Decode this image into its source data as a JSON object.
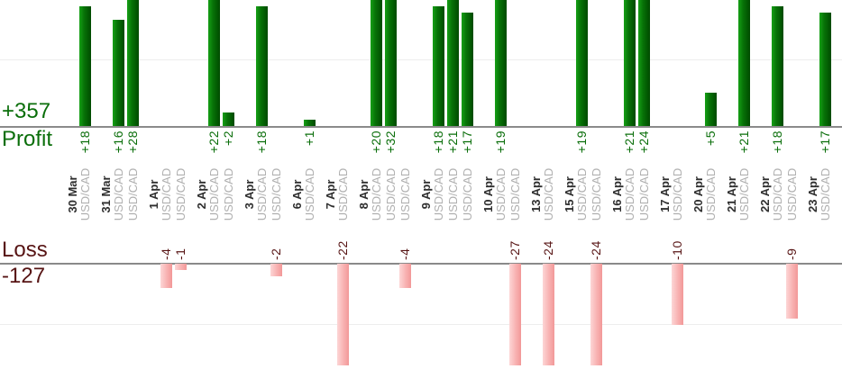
{
  "summary": {
    "profit_total": "+357",
    "profit_label": "Profit",
    "loss_label": "Loss",
    "loss_total": "-127"
  },
  "chart_data": {
    "type": "bar",
    "title": "",
    "symbol": "USD/CAD",
    "value_prefix_positive": "+",
    "profit_total": 357,
    "loss_total": -127,
    "groups": [
      {
        "date": "30 Mar",
        "trades": [
          18
        ]
      },
      {
        "date": "31 Mar",
        "trades": [
          16,
          28
        ]
      },
      {
        "date": "1 Apr",
        "trades": [
          -4,
          -1
        ]
      },
      {
        "date": "2 Apr",
        "trades": [
          22,
          2
        ]
      },
      {
        "date": "3 Apr",
        "trades": [
          18,
          -2
        ]
      },
      {
        "date": "6 Apr",
        "trades": [
          1
        ]
      },
      {
        "date": "7 Apr",
        "trades": [
          -22
        ]
      },
      {
        "date": "8 Apr",
        "trades": [
          20,
          32,
          -4
        ]
      },
      {
        "date": "9 Apr",
        "trades": [
          18,
          21,
          17
        ]
      },
      {
        "date": "10 Apr",
        "trades": [
          19,
          -27
        ]
      },
      {
        "date": "13 Apr",
        "trades": [
          -24
        ]
      },
      {
        "date": "15 Apr",
        "trades": [
          19,
          -24
        ]
      },
      {
        "date": "16 Apr",
        "trades": [
          21,
          24
        ]
      },
      {
        "date": "17 Apr",
        "trades": [
          -10
        ]
      },
      {
        "date": "20 Apr",
        "trades": [
          5
        ]
      },
      {
        "date": "21 Apr",
        "trades": [
          21
        ]
      },
      {
        "date": "22 Apr",
        "trades": [
          18,
          -9
        ]
      },
      {
        "date": "23 Apr",
        "trades": [
          17
        ]
      }
    ],
    "axis": {
      "profit_visible_max": 19,
      "loss_visible_max": -17,
      "profit_gridline_at": 10,
      "loss_gridline_at": -10,
      "grid": "on",
      "legend": "none"
    }
  },
  "colors": {
    "profit_text": "#0a6e0a",
    "loss_text": "#571414",
    "date_text": "#2e2e2e",
    "symbol_text": "#b0b0b0",
    "baseline": "#8a8a8a",
    "gridline": "#ededed",
    "profit_bar_gradient": [
      "#16a016",
      "#077307",
      "#004a00"
    ],
    "loss_bar_gradient": [
      "#fdd6d6",
      "#f8b2b2",
      "#f29898"
    ]
  }
}
